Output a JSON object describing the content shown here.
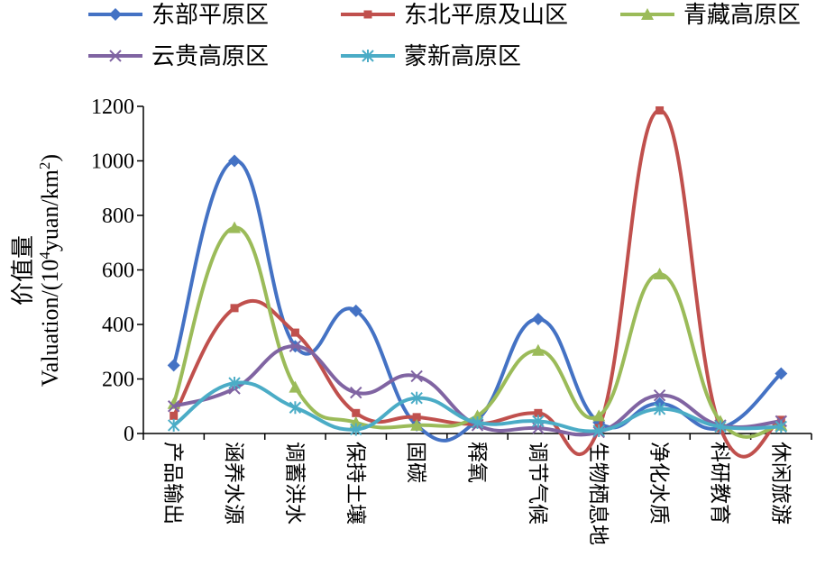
{
  "chart_data": {
    "type": "line",
    "categories": [
      "产品输出",
      "涵养水源",
      "调蓄洪水",
      "保持土壤",
      "固碳",
      "释氧",
      "调节气候",
      "生物栖息地",
      "净化水质",
      "科研教育",
      "休闲旅游"
    ],
    "series": [
      {
        "name": "东部平原区",
        "color": "#4472C4",
        "marker": "diamond",
        "values": [
          250,
          1000,
          320,
          450,
          30,
          50,
          420,
          40,
          110,
          20,
          220
        ]
      },
      {
        "name": "东北平原及山区",
        "color": "#C0504D",
        "marker": "square",
        "values": [
          65,
          460,
          370,
          75,
          60,
          35,
          75,
          20,
          1185,
          20,
          50
        ]
      },
      {
        "name": "青藏高原区",
        "color": "#9BBB59",
        "marker": "triangle",
        "values": [
          110,
          755,
          170,
          40,
          30,
          65,
          305,
          65,
          585,
          45,
          30
        ]
      },
      {
        "name": "云贵高原区",
        "color": "#8064A2",
        "marker": "x",
        "values": [
          100,
          165,
          320,
          150,
          210,
          30,
          20,
          5,
          140,
          30,
          45
        ]
      },
      {
        "name": "蒙新高原区",
        "color": "#4BACC6",
        "marker": "star",
        "values": [
          30,
          185,
          95,
          15,
          130,
          40,
          45,
          10,
          90,
          25,
          25
        ]
      }
    ],
    "ylim": [
      0,
      1200
    ],
    "yticks": [
      0,
      200,
      400,
      600,
      800,
      1000,
      1200
    ],
    "ylabel_cn": "价值量",
    "ylabel_pre": "Valuation/(10",
    "ylabel_sup": "4",
    "ylabel_mid": "yuan/km",
    "ylabel_sup2": "2",
    "ylabel_post": ")",
    "legend_position": "top",
    "grid": false
  }
}
